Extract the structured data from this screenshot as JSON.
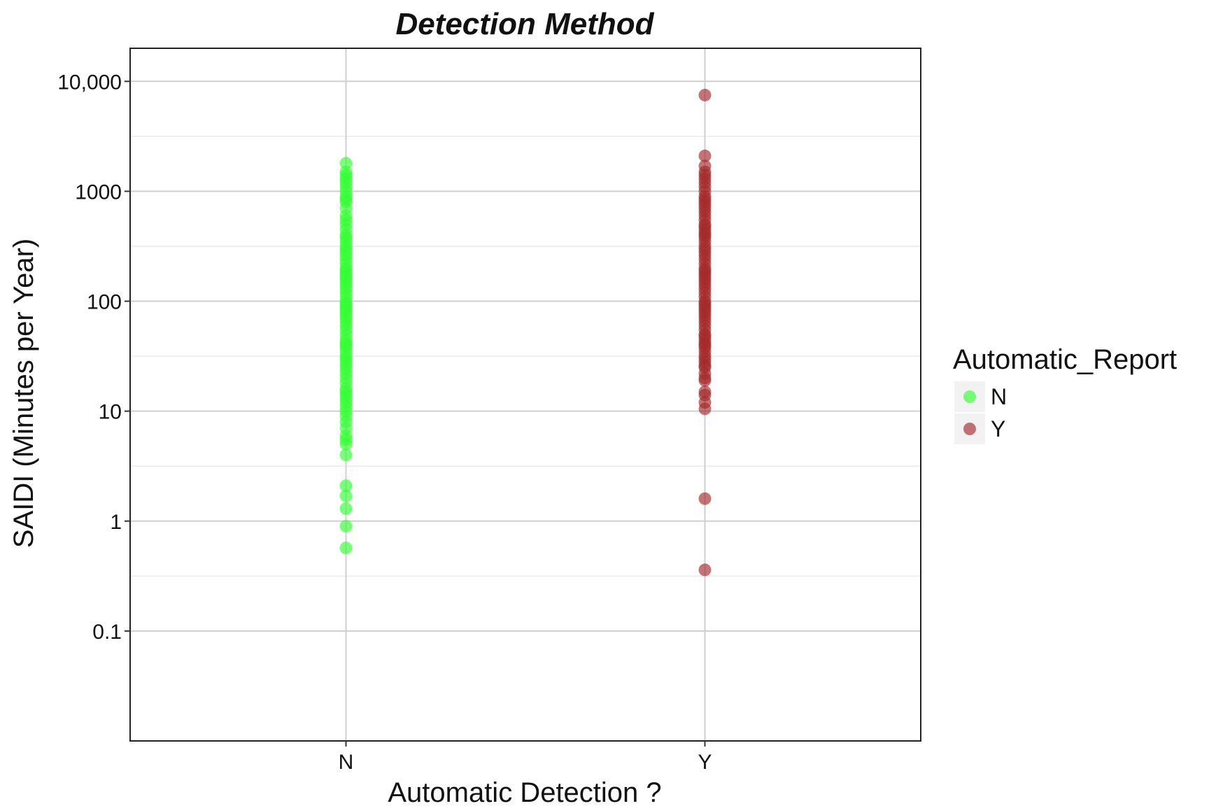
{
  "chart_data": {
    "type": "scatter",
    "title": "Detection Method",
    "xlabel": "Automatic Detection ?",
    "ylabel": "SAIDI (Minutes per Year)",
    "y_scale": "log10",
    "ylim": [
      0.01,
      20000
    ],
    "y_ticks": [
      {
        "value": 0.1,
        "label": "0.1"
      },
      {
        "value": 1,
        "label": "1"
      },
      {
        "value": 10,
        "label": "10"
      },
      {
        "value": 100,
        "label": "100"
      },
      {
        "value": 1000,
        "label": "1000"
      },
      {
        "value": 10000,
        "label": "10,000"
      }
    ],
    "categories": [
      "N",
      "Y"
    ],
    "grid": true,
    "legend": {
      "title": "Automatic_Report",
      "position": "right"
    },
    "series": [
      {
        "name": "N",
        "category": "N",
        "color": "#33ff33",
        "values": [
          1800,
          1500,
          1400,
          1300,
          1200,
          1100,
          1000,
          900,
          850,
          800,
          700,
          600,
          550,
          500,
          450,
          400,
          380,
          350,
          320,
          300,
          280,
          260,
          240,
          220,
          200,
          190,
          180,
          170,
          160,
          150,
          140,
          130,
          120,
          110,
          100,
          95,
          90,
          85,
          80,
          75,
          70,
          65,
          60,
          55,
          50,
          45,
          42,
          40,
          38,
          35,
          32,
          30,
          28,
          26,
          24,
          22,
          20,
          18,
          16,
          15,
          14,
          13,
          12,
          11,
          10,
          9,
          8,
          7,
          6,
          5.5,
          5,
          4,
          2.1,
          1.7,
          1.3,
          0.9,
          0.57
        ]
      },
      {
        "name": "Y",
        "category": "Y",
        "color": "#a52a2a",
        "values": [
          7500,
          2100,
          1700,
          1500,
          1400,
          1300,
          1200,
          1100,
          1000,
          900,
          850,
          800,
          750,
          700,
          650,
          600,
          550,
          500,
          480,
          450,
          420,
          400,
          380,
          350,
          320,
          300,
          280,
          260,
          240,
          220,
          200,
          190,
          180,
          170,
          160,
          150,
          140,
          130,
          120,
          110,
          100,
          95,
          90,
          85,
          80,
          75,
          70,
          65,
          60,
          55,
          50,
          48,
          45,
          42,
          40,
          38,
          35,
          32,
          30,
          28,
          26,
          25,
          22,
          20,
          19,
          15,
          14,
          12,
          10.5,
          1.6,
          0.36
        ]
      }
    ]
  }
}
